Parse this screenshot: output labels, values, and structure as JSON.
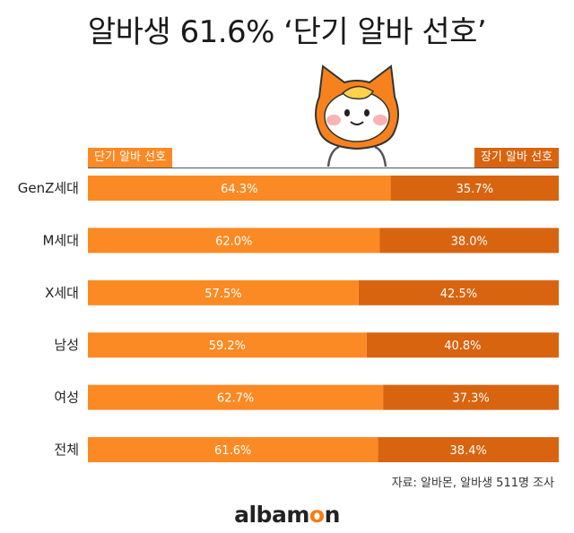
{
  "title": "알바생 61.6% ‘단기 알바 선호’",
  "legend": {
    "short": "단기 알바 선호",
    "long": "장기 알바 선호"
  },
  "source": "자료: 알바몬, 알바생 511명 조사",
  "logo": {
    "prefix": "albam",
    "o": "o",
    "suffix": "n"
  },
  "colors": {
    "short": "#fb8a24",
    "long": "#d96410"
  },
  "chart_data": {
    "type": "bar",
    "orientation": "horizontal",
    "stacked": true,
    "percent_stacked": true,
    "categories": [
      "GenZ세대",
      "M세대",
      "X세대",
      "남성",
      "여성",
      "전체"
    ],
    "series": [
      {
        "name": "단기 알바 선호",
        "values": [
          64.3,
          62.0,
          57.5,
          59.2,
          62.7,
          61.6
        ],
        "labels": [
          "64.3%",
          "62.0%",
          "57.5%",
          "59.2%",
          "62.7%",
          "61.6%"
        ]
      },
      {
        "name": "장기 알바 선호",
        "values": [
          35.7,
          38.0,
          42.5,
          40.8,
          37.3,
          38.4
        ],
        "labels": [
          "35.7%",
          "38.0%",
          "42.5%",
          "40.8%",
          "37.3%",
          "38.4%"
        ]
      }
    ],
    "xlim": [
      0,
      100
    ],
    "grid": false,
    "legend_position": "top"
  }
}
